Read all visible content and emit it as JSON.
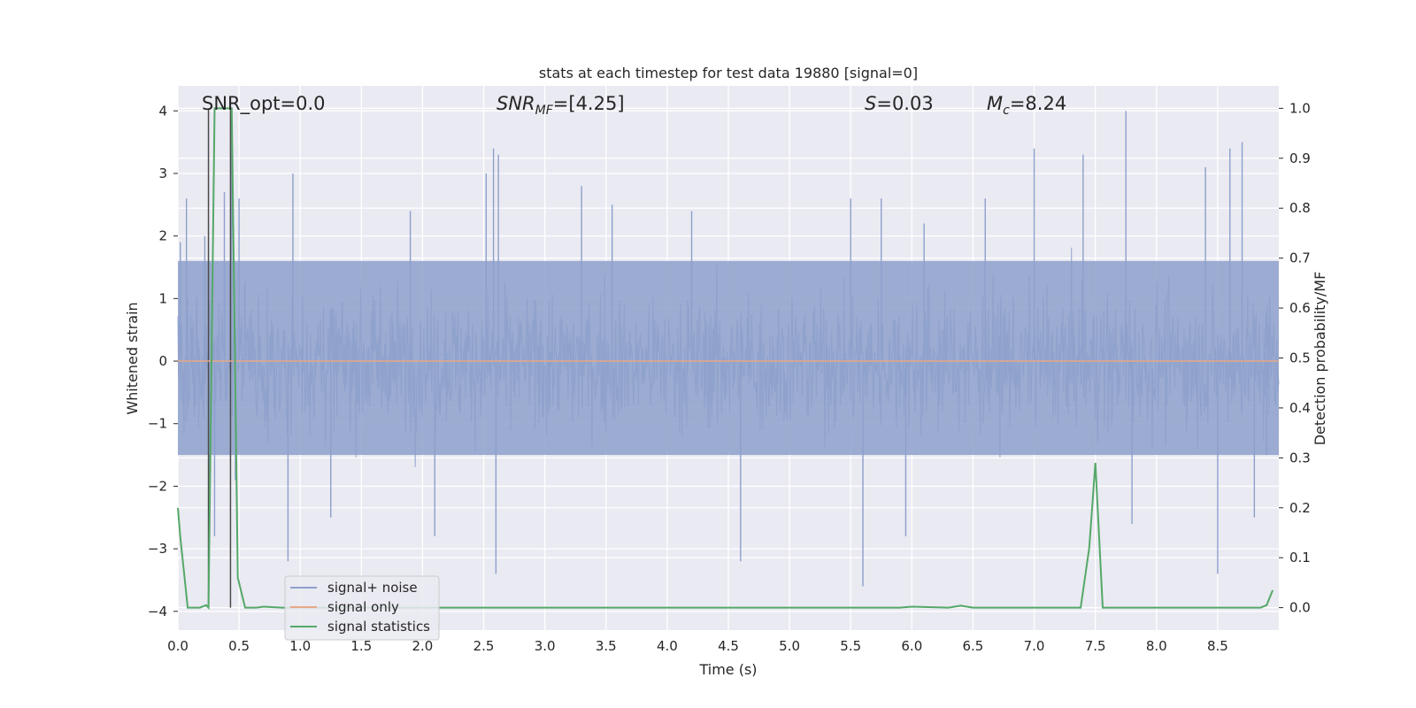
{
  "chart_data": {
    "type": "line",
    "title": "stats at each timestep for test data 19880 [signal=0]",
    "xlabel": "Time (s)",
    "ylabel_left": "Whitened strain",
    "ylabel_right": "Detection probability/MF",
    "xlim": [
      0.0,
      9.0
    ],
    "ylim_left": [
      -4.3,
      4.4
    ],
    "ylim_right": [
      -0.045,
      1.045
    ],
    "grid": true,
    "xticks": [
      "0.0",
      "0.5",
      "1.0",
      "1.5",
      "2.0",
      "2.5",
      "3.0",
      "3.5",
      "4.0",
      "4.5",
      "5.0",
      "5.5",
      "6.0",
      "6.5",
      "7.0",
      "7.5",
      "8.0",
      "8.5"
    ],
    "yticks_left": [
      "4",
      "3",
      "2",
      "1",
      "0",
      "−1",
      "−2",
      "−3",
      "−4"
    ],
    "yticks_right": [
      "1.0",
      "0.9",
      "0.8",
      "0.7",
      "0.6",
      "0.5",
      "0.4",
      "0.3",
      "0.2",
      "0.1",
      "0.0"
    ],
    "annotations": {
      "snr_opt": "SNR_opt=0.0",
      "snr_mf_label": "SNR",
      "snr_mf_sub": "MF",
      "snr_mf_value": "=[4.25]",
      "s_label": "S",
      "s_value": "=0.03",
      "mc_label": "M",
      "mc_sub": "c",
      "mc_value": "=8.24"
    },
    "legend": {
      "position": "lower-left",
      "entries": [
        "signal+ noise",
        "signal only",
        "signal statistics"
      ]
    },
    "series": [
      {
        "name": "signal+ noise",
        "axis": "left",
        "color": "#8da0cb",
        "description_values": {
          "band_min": -2.3,
          "band_max": 2.3,
          "core_min": -1.5,
          "core_max": 1.6,
          "spikes": [
            [
              0.02,
              1.9
            ],
            [
              0.07,
              2.6
            ],
            [
              0.22,
              2.0
            ],
            [
              0.26,
              -1.9
            ],
            [
              0.3,
              -2.8
            ],
            [
              0.38,
              2.7
            ],
            [
              0.44,
              4.0
            ],
            [
              0.47,
              -1.9
            ],
            [
              0.5,
              2.6
            ],
            [
              0.9,
              -3.2
            ],
            [
              0.94,
              3.0
            ],
            [
              1.25,
              -2.5
            ],
            [
              1.9,
              2.4
            ],
            [
              2.1,
              -2.8
            ],
            [
              2.52,
              3.0
            ],
            [
              2.58,
              3.4
            ],
            [
              2.6,
              -3.4
            ],
            [
              2.62,
              3.3
            ],
            [
              3.3,
              2.8
            ],
            [
              3.55,
              2.5
            ],
            [
              4.2,
              2.4
            ],
            [
              4.6,
              -3.2
            ],
            [
              5.5,
              2.6
            ],
            [
              5.6,
              -3.6
            ],
            [
              5.75,
              2.6
            ],
            [
              5.95,
              -2.8
            ],
            [
              6.1,
              2.2
            ],
            [
              6.6,
              2.6
            ],
            [
              7.0,
              3.4
            ],
            [
              7.4,
              3.3
            ],
            [
              7.75,
              4.0
            ],
            [
              7.8,
              -2.6
            ],
            [
              8.4,
              3.1
            ],
            [
              8.5,
              -3.4
            ],
            [
              8.6,
              3.4
            ],
            [
              8.7,
              3.5
            ],
            [
              8.8,
              -2.5
            ],
            [
              8.9,
              -1.5
            ]
          ]
        }
      },
      {
        "name": "signal only",
        "axis": "left",
        "color": "#e5a887",
        "x": [
          0.0,
          9.0
        ],
        "y": [
          0.0,
          0.0
        ]
      },
      {
        "name": "signal statistics",
        "axis": "right",
        "color": "#55a868",
        "x": [
          0.0,
          0.02,
          0.08,
          0.18,
          0.23,
          0.25,
          0.3,
          0.44,
          0.49,
          0.55,
          0.64,
          0.7,
          0.85,
          1.0,
          5.9,
          6.0,
          6.3,
          6.4,
          6.5,
          7.38,
          7.45,
          7.5,
          7.56,
          7.6,
          8.85,
          8.9,
          8.95
        ],
        "y": [
          0.2,
          0.14,
          0.0,
          0.0,
          0.005,
          0.0,
          1.0,
          1.0,
          0.06,
          0.0,
          0.0,
          0.002,
          0.0,
          0.0,
          0.0,
          0.002,
          0.0,
          0.004,
          0.0,
          0.0,
          0.12,
          0.29,
          0.0,
          0.0,
          0.0,
          0.005,
          0.035
        ]
      },
      {
        "name": "markers",
        "axis": "right",
        "color": "#4a4a4a",
        "x": [
          0.25,
          0.43
        ],
        "y_range": [
          0.0,
          1.0
        ]
      }
    ]
  }
}
